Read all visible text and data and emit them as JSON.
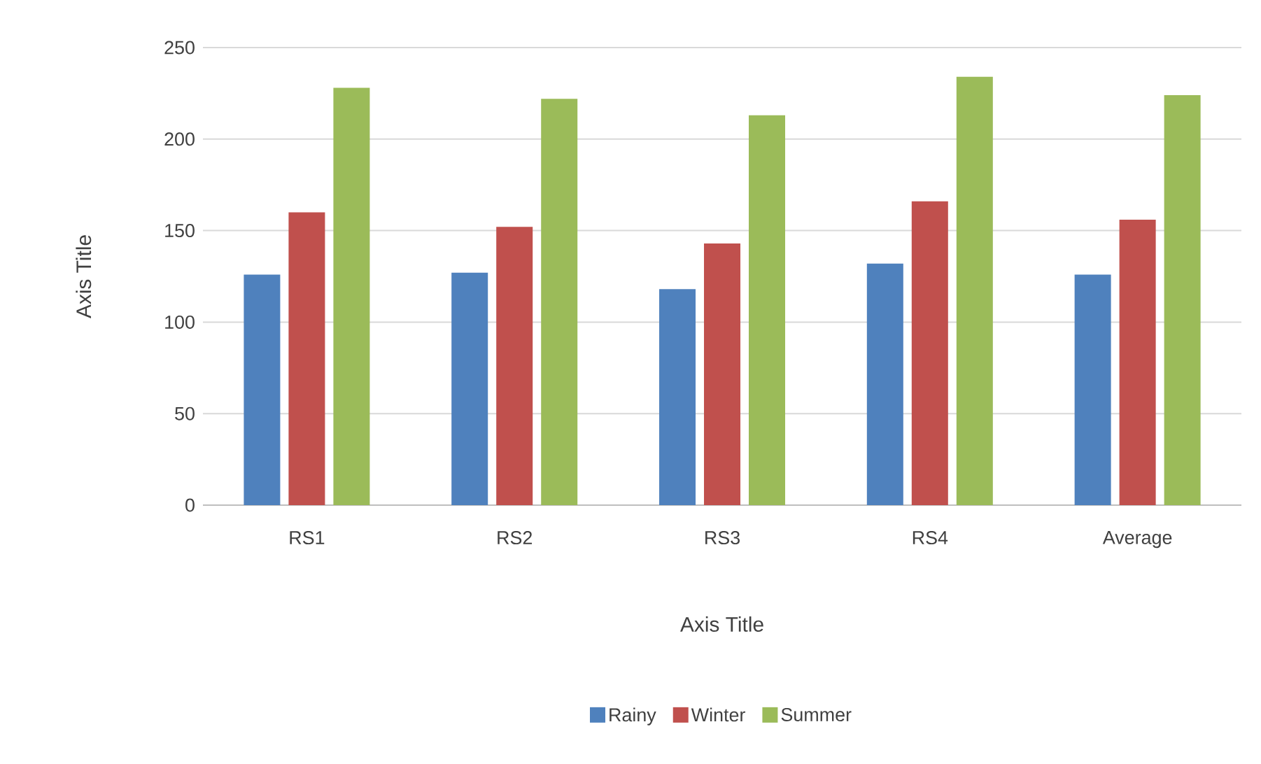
{
  "chart_data": {
    "type": "bar",
    "xlabel": "Axis Title",
    "ylabel": "Axis Title",
    "categories": [
      "RS1",
      "RS2",
      "RS3",
      "RS4",
      "Average"
    ],
    "series": [
      {
        "name": "Rainy",
        "color": "#4f81bd",
        "values": [
          126,
          127,
          118,
          132,
          126
        ]
      },
      {
        "name": "Winter",
        "color": "#c0504d",
        "values": [
          160,
          152,
          143,
          166,
          156
        ]
      },
      {
        "name": "Summer",
        "color": "#9bbb59",
        "values": [
          228,
          222,
          213,
          234,
          224
        ]
      }
    ],
    "ylim": [
      0,
      250
    ],
    "yticks": [
      0,
      50,
      100,
      150,
      200,
      250
    ],
    "grid": "y",
    "legend": "bottom"
  }
}
